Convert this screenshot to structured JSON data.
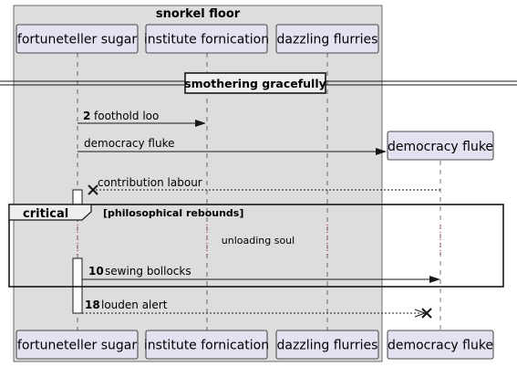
{
  "box": {
    "title": "snorkel floor"
  },
  "participants": {
    "fortuneteller": "fortuneteller sugar",
    "institute": "institute fornication",
    "dazzling": "dazzling flurries",
    "democracy": "democracy fluke"
  },
  "divider": "smothering gracefully",
  "messages": [
    {
      "id": "m1",
      "number": "2",
      "label": "foothold loo",
      "from": "fortuneteller sugar",
      "to": "institute fornication",
      "style": "solid"
    },
    {
      "id": "m2",
      "number": "",
      "label": "democracy fluke",
      "from": "fortuneteller sugar",
      "to": "democracy fluke",
      "style": "solid-create"
    },
    {
      "id": "m3",
      "number": "",
      "label": "contribution labour",
      "from": "democracy fluke",
      "to": "fortuneteller sugar",
      "style": "dashed-destroy"
    },
    {
      "id": "m4",
      "number": "10",
      "label": "sewing bollocks",
      "from": "fortuneteller sugar",
      "to": "democracy fluke",
      "style": "solid"
    },
    {
      "id": "m5",
      "number": "18",
      "label": "louden alert",
      "from": "fortuneteller sugar",
      "to": "democracy fluke",
      "style": "dashed-destroy"
    }
  ],
  "group": {
    "kind": "critical",
    "condition": "[philosophical rebounds]",
    "delay_text": "unloading soul"
  },
  "colors": {
    "participant_fill": "#E2E2F0",
    "box_fill": "#DDDDDD",
    "line": "#181818",
    "delay_dots": "#A80036"
  }
}
